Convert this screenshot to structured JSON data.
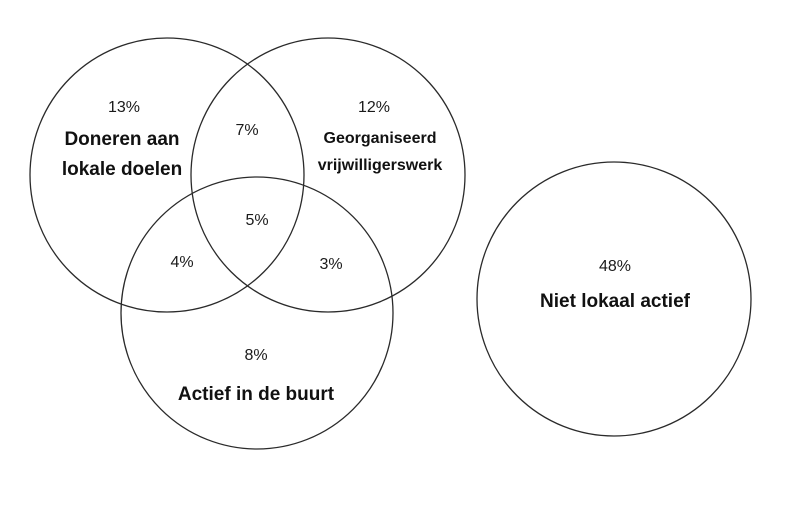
{
  "diagram": {
    "type": "venn",
    "circles": {
      "donate": {
        "label_line1": "Doneren aan",
        "label_line2": "lokale doelen",
        "only_pct": "13%"
      },
      "volunteer": {
        "label_line1": "Georganiseerd",
        "label_line2": "vrijwilligerswerk",
        "only_pct": "12%"
      },
      "neighbourhood": {
        "label": "Actief in de buurt",
        "only_pct": "8%"
      },
      "inactive": {
        "label": "Niet lokaal actief",
        "pct": "48%"
      }
    },
    "overlaps": {
      "donate_volunteer": "7%",
      "donate_neighbourhood": "4%",
      "volunteer_neighbourhood": "3%",
      "all_three": "5%"
    }
  }
}
